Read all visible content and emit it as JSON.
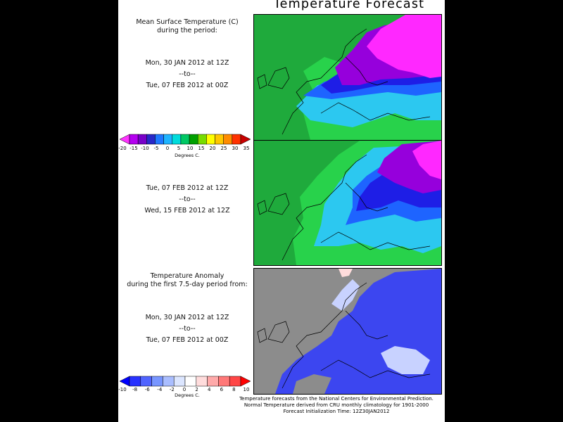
{
  "title": "Temperature Forecast",
  "panel1": {
    "heading1": "Mean Surface Temperature (C)",
    "heading2": "during the period:",
    "start": "Mon, 30 JAN 2012 at 12Z",
    "sep": "--to--",
    "end": "Tue, 07 FEB 2012 at 00Z"
  },
  "legend_temp": {
    "ticks": [
      "-20",
      "-15",
      "-10",
      "-5",
      "0",
      "5",
      "10",
      "15",
      "20",
      "25",
      "30",
      "35"
    ],
    "unit": "Degrees C.",
    "colors": [
      "#ff33ff",
      "#b400f0",
      "#7800c8",
      "#2828c8",
      "#1e78ff",
      "#1eb4ff",
      "#00dcdc",
      "#00c864",
      "#00a000",
      "#78dc00",
      "#ffff00",
      "#ffc800",
      "#ff8c00",
      "#ff3200",
      "#c80000"
    ]
  },
  "panel2": {
    "start": "Tue, 07 FEB 2012 at 12Z",
    "sep": "--to--",
    "end": "Wed, 15 FEB 2012 at 12Z"
  },
  "panel3": {
    "heading1": "Temperature Anomaly",
    "heading2": "during the first 7.5-day period from:",
    "start": "Mon, 30 JAN 2012 at 12Z",
    "sep": "--to--",
    "end": "Tue, 07 FEB 2012 at 00Z"
  },
  "legend_anom": {
    "ticks": [
      "-10",
      "-8",
      "-6",
      "-4",
      "-2",
      "0",
      "2",
      "4",
      "6",
      "8",
      "10"
    ],
    "unit": "Degrees C.",
    "colors": [
      "#0000ff",
      "#2832ff",
      "#5064ff",
      "#7896ff",
      "#aabeff",
      "#dce6ff",
      "#ffffff",
      "#ffdcdc",
      "#ffaaaa",
      "#ff7878",
      "#ff4646",
      "#ff0000"
    ]
  },
  "footer": {
    "line1": "Temperature forecasts from the National Centers for Environmental Prediction.",
    "line2": "Normal Temperature derived from CRU monthly climatology for 1901-2000",
    "line3": "Forecast Initialization Time: 12Z30JAN2012"
  },
  "map_colors": {
    "sea_green": "#1faa3c",
    "land_green": "#28d24b",
    "cold_cyan": "#2cc8f0",
    "cold_blue": "#1e64ff",
    "deep_blue": "#1e1ee6",
    "purple": "#9600dc",
    "magenta": "#ff28ff",
    "anomaly_grey": "#8c8c8c",
    "anomaly_blue": "#3c46f0",
    "anomaly_light": "#c8d2ff"
  }
}
